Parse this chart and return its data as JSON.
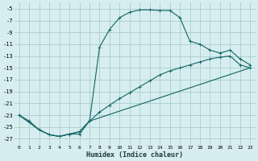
{
  "xlabel": "Humidex (Indice chaleur)",
  "background_color": "#d7eef0",
  "grid_color": "#aacccc",
  "line_color": "#1a6b6b",
  "xlim": [
    -0.5,
    23.5
  ],
  "ylim": [
    -28,
    -4.0
  ],
  "xticks": [
    0,
    1,
    2,
    3,
    4,
    5,
    6,
    7,
    8,
    9,
    10,
    11,
    12,
    13,
    14,
    15,
    16,
    17,
    18,
    19,
    20,
    21,
    22,
    23
  ],
  "yticks": [
    -5,
    -7,
    -9,
    -11,
    -13,
    -15,
    -17,
    -19,
    -21,
    -23,
    -25,
    -27
  ],
  "curve1_x": [
    0,
    1,
    2,
    3,
    4,
    5,
    6,
    7,
    8,
    9,
    10,
    11,
    12,
    13,
    14,
    15,
    16,
    17,
    18,
    19,
    20,
    21,
    22,
    23
  ],
  "curve1_y": [
    -23,
    -24,
    -25.5,
    -26.3,
    -26.6,
    -26.2,
    -26.2,
    -24.0,
    -11.5,
    -8.5,
    -6.5,
    -5.6,
    -5.2,
    -5.2,
    -5.3,
    -5.3,
    -6.5,
    -10.5,
    -11.0,
    -12.0,
    -12.5,
    -12.0,
    -13.5,
    -14.5
  ],
  "curve2_x": [
    0,
    2,
    3,
    4,
    5,
    6,
    7,
    8,
    9,
    10,
    11,
    12,
    13,
    14,
    15,
    16,
    17,
    18,
    19,
    20,
    21,
    22,
    23
  ],
  "curve2_y": [
    -23,
    -25.5,
    -26.3,
    -26.6,
    -26.2,
    -25.8,
    -24.0,
    -22.5,
    -21.3,
    -20.2,
    -19.2,
    -18.2,
    -17.2,
    -16.2,
    -15.5,
    -15.0,
    -14.5,
    -14.0,
    -13.5,
    -13.2,
    -13.0,
    -14.5,
    -15.0
  ],
  "curve3_x": [
    0,
    2,
    3,
    4,
    5,
    6,
    7,
    23
  ],
  "curve3_y": [
    -23,
    -25.5,
    -26.3,
    -26.6,
    -26.2,
    -25.8,
    -24.0,
    -15.0
  ]
}
